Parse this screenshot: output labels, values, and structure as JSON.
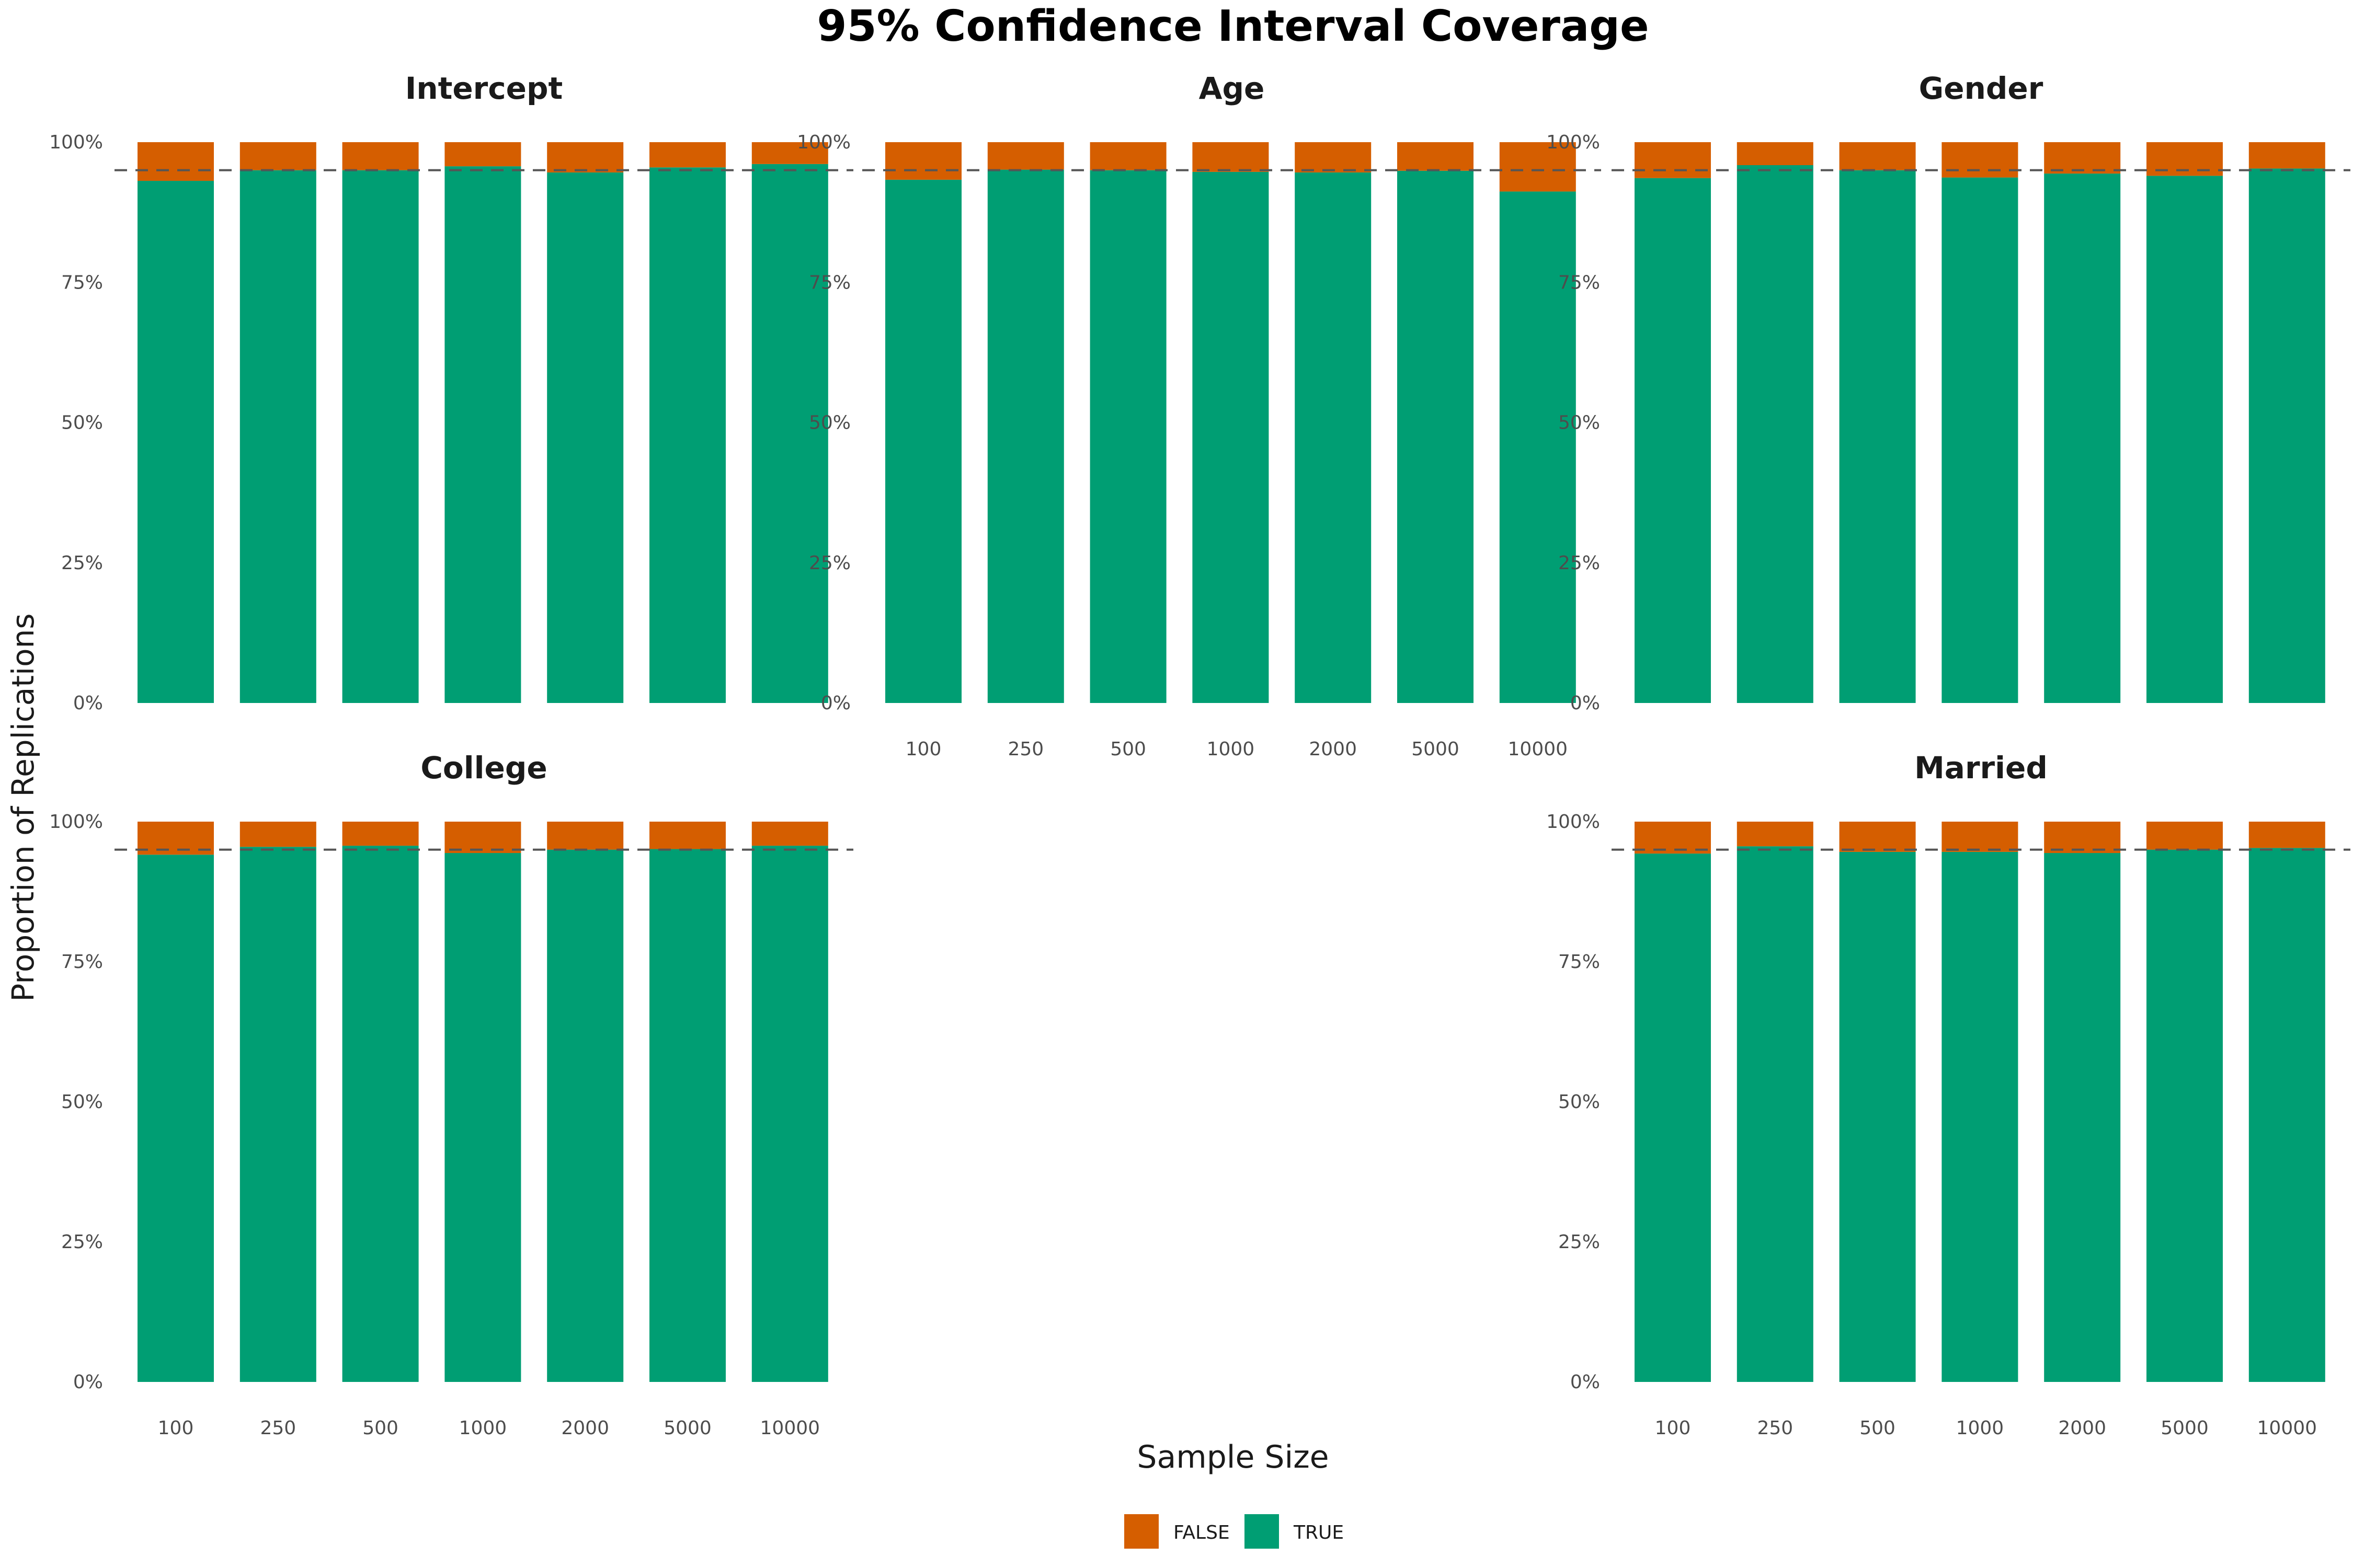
{
  "chart_data": {
    "type": "bar",
    "stacked": true,
    "normalized": true,
    "title": "95% Confidence Interval Coverage",
    "xlabel": "Sample Size",
    "ylabel": "Proportion of Replications",
    "categories": [
      "100",
      "250",
      "500",
      "1000",
      "2000",
      "5000",
      "10000"
    ],
    "y_ticks": [
      "0%",
      "25%",
      "50%",
      "75%",
      "100%"
    ],
    "ylim": [
      0,
      1
    ],
    "reference_line": 0.95,
    "legend": {
      "placement": "bottom",
      "items": [
        "FALSE",
        "TRUE"
      ]
    },
    "colors": {
      "FALSE": "#D55E00",
      "TRUE": "#009E73",
      "reference_line": "#555555"
    },
    "panels": [
      {
        "name": "Intercept",
        "series": [
          {
            "name": "TRUE",
            "values": [
              0.931,
              0.95,
              0.95,
              0.957,
              0.946,
              0.955,
              0.961
            ]
          },
          {
            "name": "FALSE",
            "values": [
              0.069,
              0.05,
              0.05,
              0.043,
              0.054,
              0.045,
              0.039
            ]
          }
        ]
      },
      {
        "name": "Age",
        "series": [
          {
            "name": "TRUE",
            "values": [
              0.933,
              0.951,
              0.95,
              0.947,
              0.946,
              0.949,
              0.912
            ]
          },
          {
            "name": "FALSE",
            "values": [
              0.067,
              0.049,
              0.05,
              0.053,
              0.054,
              0.051,
              0.088
            ]
          }
        ]
      },
      {
        "name": "Gender",
        "series": [
          {
            "name": "TRUE",
            "values": [
              0.936,
              0.959,
              0.95,
              0.937,
              0.944,
              0.94,
              0.953
            ]
          },
          {
            "name": "FALSE",
            "values": [
              0.064,
              0.041,
              0.05,
              0.063,
              0.056,
              0.06,
              0.047
            ]
          }
        ]
      },
      {
        "name": "College",
        "series": [
          {
            "name": "TRUE",
            "values": [
              0.941,
              0.955,
              0.957,
              0.944,
              0.95,
              0.951,
              0.957
            ]
          },
          {
            "name": "FALSE",
            "values": [
              0.059,
              0.045,
              0.043,
              0.056,
              0.05,
              0.049,
              0.043
            ]
          }
        ]
      },
      {
        "name": "Married",
        "series": [
          {
            "name": "TRUE",
            "values": [
              0.943,
              0.956,
              0.946,
              0.946,
              0.944,
              0.95,
              0.953
            ]
          },
          {
            "name": "FALSE",
            "values": [
              0.057,
              0.044,
              0.054,
              0.054,
              0.056,
              0.05,
              0.047
            ]
          }
        ]
      }
    ]
  }
}
